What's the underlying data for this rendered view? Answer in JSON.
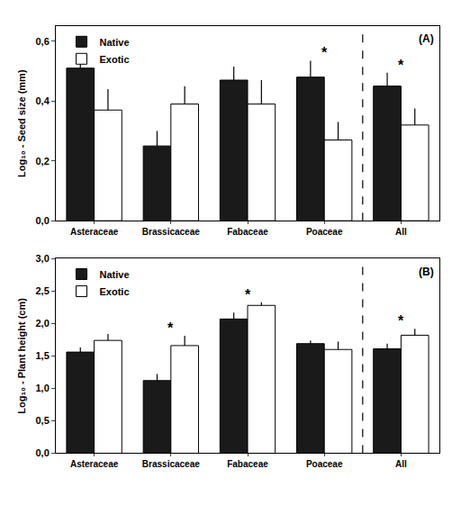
{
  "chart_data": [
    {
      "type": "bar",
      "title": "(A)",
      "y_label": "Log₁₀ - Seed size (mm)",
      "categories": [
        "Asteraceae",
        "Brassicaceae",
        "Fabaceae",
        "Poaceae",
        "All"
      ],
      "series": [
        {
          "name": "Native",
          "color": "#1a1a1a",
          "values": [
            0.51,
            0.25,
            0.47,
            0.48,
            0.45
          ],
          "errors": [
            0.03,
            0.05,
            0.045,
            0.055,
            0.045
          ]
        },
        {
          "name": "Exotic",
          "color": "#ffffff",
          "values": [
            0.37,
            0.39,
            0.39,
            0.27,
            0.32
          ],
          "errors": [
            0.07,
            0.06,
            0.08,
            0.06,
            0.055
          ]
        }
      ],
      "ylim": [
        0,
        0.65
      ],
      "yticks": [
        {
          "value": 0,
          "label": "0,0"
        },
        {
          "value": 0.2,
          "label": "0,2"
        },
        {
          "value": 0.4,
          "label": "0,4"
        },
        {
          "value": 0.6,
          "label": "0,6"
        }
      ],
      "annotations": [
        {
          "category": "Poaceae",
          "text": "*"
        },
        {
          "category": "All",
          "text": "*"
        }
      ],
      "legend": "top left",
      "grid": false
    },
    {
      "type": "bar",
      "title": "(B)",
      "y_label": "Log₁₀ - Plant height (cm)",
      "categories": [
        "Asteraceae",
        "Brassicaceae",
        "Fabaceae",
        "Poaceae",
        "All"
      ],
      "series": [
        {
          "name": "Native",
          "color": "#1a1a1a",
          "values": [
            1.56,
            1.12,
            2.07,
            1.69,
            1.61
          ],
          "errors": [
            0.07,
            0.1,
            0.1,
            0.05,
            0.08
          ]
        },
        {
          "name": "Exotic",
          "color": "#ffffff",
          "values": [
            1.74,
            1.66,
            2.28,
            1.6,
            1.82
          ],
          "errors": [
            0.1,
            0.15,
            0.05,
            0.12,
            0.1
          ]
        }
      ],
      "ylim": [
        0,
        3.0
      ],
      "yticks": [
        {
          "value": 0,
          "label": "0,0"
        },
        {
          "value": 0.5,
          "label": "0,5"
        },
        {
          "value": 1,
          "label": "1,0"
        },
        {
          "value": 1.5,
          "label": "1,5"
        },
        {
          "value": 2,
          "label": "2,0"
        },
        {
          "value": 2.5,
          "label": "2,5"
        },
        {
          "value": 3,
          "label": "3,0"
        }
      ],
      "annotations": [
        {
          "category": "Brassicaceae",
          "text": "*"
        },
        {
          "category": "Fabaceae",
          "text": "*"
        },
        {
          "category": "All",
          "text": "*"
        }
      ],
      "legend": "top left",
      "grid": false
    }
  ]
}
